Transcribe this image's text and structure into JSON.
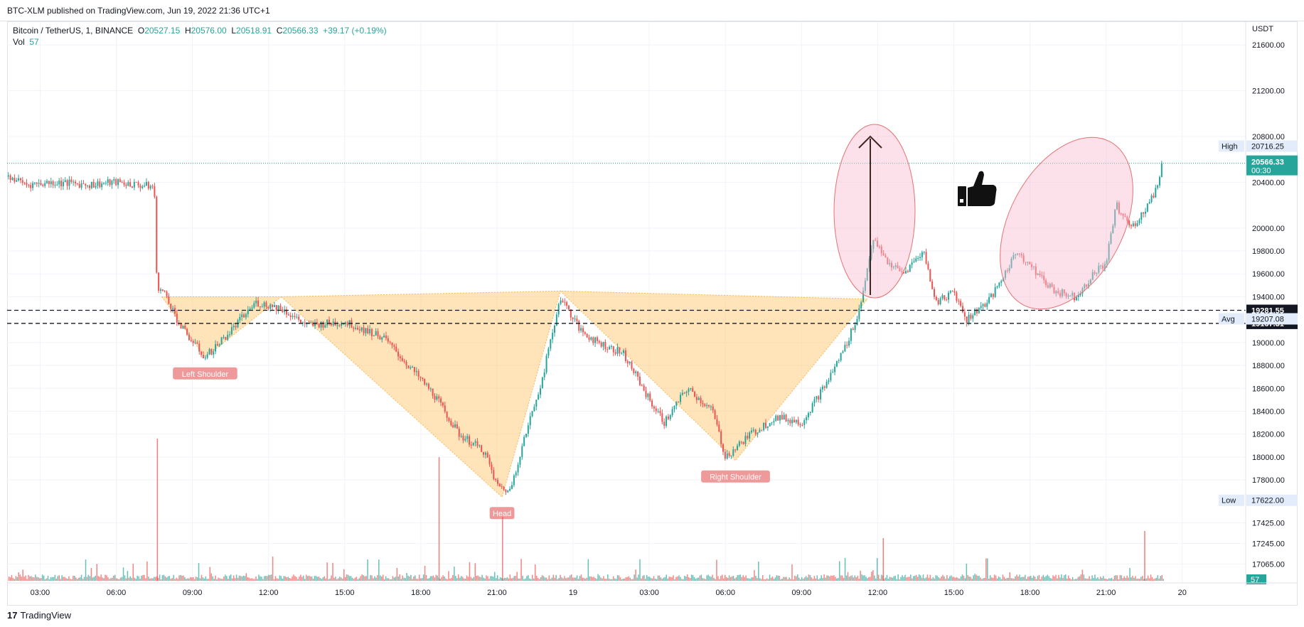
{
  "header": {
    "published": "BTC-XLM published on TradingView.com, Jun 19, 2022 21:36 UTC+1"
  },
  "legend": {
    "symbol": "Bitcoin / TetherUS, 1, BINANCE",
    "open_label": "O",
    "open": "20527.15",
    "high_label": "H",
    "high": "20576.00",
    "low_label": "L",
    "low": "20518.91",
    "close_label": "C",
    "close": "20566.33",
    "change": "+39.17 (+0.19%)",
    "vol_label": "Vol",
    "vol": "57"
  },
  "footer": {
    "brand": "TradingView",
    "logo_glyph": "17"
  },
  "colors": {
    "up": "#26a69a",
    "down": "#ef5350",
    "pattern_fill": "#ffcc80",
    "ellipse": "#f8bbd0",
    "label_bg": "#ef9a9a"
  },
  "chart_data": {
    "type": "candlestick",
    "title": "",
    "currency": "USDT",
    "y_range": [
      16900,
      21800
    ],
    "y_ticks": [
      21600,
      21200,
      20800,
      20400,
      20000,
      19800,
      19600,
      19400,
      19000,
      18800,
      18600,
      18400,
      18200,
      18000,
      17800,
      17425,
      17245,
      17065
    ],
    "y_tick_labels": [
      "21600.00",
      "21200.00",
      "20800.00",
      "20400.00",
      "20000.00",
      "19800.00",
      "19600.00",
      "19400.00",
      "19000.00",
      "18800.00",
      "18600.00",
      "18400.00",
      "18200.00",
      "18000.00",
      "17800.00",
      "17425.00",
      "17245.00",
      "17065.00"
    ],
    "x_ticks": [
      "03:00",
      "06:00",
      "09:00",
      "12:00",
      "15:00",
      "18:00",
      "21:00",
      "19",
      "03:00",
      "06:00",
      "09:00",
      "12:00",
      "15:00",
      "18:00",
      "21:00",
      "20"
    ],
    "x_tick_hours": [
      3,
      6,
      9,
      12,
      15,
      18,
      21,
      24,
      27,
      30,
      33,
      36,
      39,
      42,
      45,
      48
    ],
    "x_range_hours": [
      1.7,
      50.5
    ],
    "price_path": [
      {
        "t": 1.75,
        "p": 20450
      },
      {
        "t": 2.5,
        "p": 20380
      },
      {
        "t": 3.5,
        "p": 20400
      },
      {
        "t": 5.0,
        "p": 20380
      },
      {
        "t": 6.0,
        "p": 20400
      },
      {
        "t": 7.5,
        "p": 20360
      },
      {
        "t": 7.6,
        "p": 19500
      },
      {
        "t": 8.0,
        "p": 19400
      },
      {
        "t": 8.5,
        "p": 19150
      },
      {
        "t": 9.5,
        "p": 18870
      },
      {
        "t": 10.5,
        "p": 19100
      },
      {
        "t": 11.5,
        "p": 19350
      },
      {
        "t": 12.5,
        "p": 19300
      },
      {
        "t": 13.5,
        "p": 19150
      },
      {
        "t": 15.0,
        "p": 19180
      },
      {
        "t": 16.5,
        "p": 19050
      },
      {
        "t": 17.5,
        "p": 18800
      },
      {
        "t": 18.5,
        "p": 18550
      },
      {
        "t": 19.5,
        "p": 18200
      },
      {
        "t": 20.5,
        "p": 18050
      },
      {
        "t": 21.0,
        "p": 17750
      },
      {
        "t": 21.5,
        "p": 17700
      },
      {
        "t": 22.0,
        "p": 18100
      },
      {
        "t": 22.8,
        "p": 18700
      },
      {
        "t": 23.5,
        "p": 19400
      },
      {
        "t": 24.3,
        "p": 19100
      },
      {
        "t": 25.0,
        "p": 19000
      },
      {
        "t": 26.0,
        "p": 18900
      },
      {
        "t": 27.0,
        "p": 18500
      },
      {
        "t": 27.6,
        "p": 18300
      },
      {
        "t": 28.5,
        "p": 18600
      },
      {
        "t": 29.5,
        "p": 18400
      },
      {
        "t": 30.0,
        "p": 18000
      },
      {
        "t": 31.0,
        "p": 18200
      },
      {
        "t": 32.0,
        "p": 18350
      },
      {
        "t": 33.0,
        "p": 18300
      },
      {
        "t": 34.0,
        "p": 18650
      },
      {
        "t": 34.8,
        "p": 19000
      },
      {
        "t": 35.3,
        "p": 19300
      },
      {
        "t": 35.8,
        "p": 19900
      },
      {
        "t": 36.4,
        "p": 19700
      },
      {
        "t": 37.0,
        "p": 19600
      },
      {
        "t": 37.8,
        "p": 19800
      },
      {
        "t": 38.3,
        "p": 19350
      },
      {
        "t": 39.0,
        "p": 19450
      },
      {
        "t": 39.5,
        "p": 19200
      },
      {
        "t": 40.5,
        "p": 19400
      },
      {
        "t": 41.5,
        "p": 19800
      },
      {
        "t": 42.5,
        "p": 19550
      },
      {
        "t": 43.0,
        "p": 19450
      },
      {
        "t": 43.8,
        "p": 19400
      },
      {
        "t": 44.5,
        "p": 19600
      },
      {
        "t": 45.0,
        "p": 19700
      },
      {
        "t": 45.4,
        "p": 20200
      },
      {
        "t": 46.0,
        "p": 20000
      },
      {
        "t": 46.5,
        "p": 20150
      },
      {
        "t": 47.0,
        "p": 20350
      },
      {
        "t": 47.2,
        "p": 20566
      }
    ],
    "volume_spikes": [
      {
        "t": 7.6,
        "v": 1.0
      },
      {
        "t": 18.7,
        "v": 0.87
      },
      {
        "t": 21.2,
        "v": 0.45
      },
      {
        "t": 36.2,
        "v": 0.3
      },
      {
        "t": 46.5,
        "v": 0.35
      }
    ],
    "pattern_labels": [
      "Left Shoulder",
      "Head",
      "Right Shoulder"
    ],
    "pattern_points": [
      {
        "t": 7.8,
        "p": 19400
      },
      {
        "t": 9.5,
        "p": 18870
      },
      {
        "t": 12.5,
        "p": 19400
      },
      {
        "t": 21.2,
        "p": 17650
      },
      {
        "t": 23.5,
        "p": 19450
      },
      {
        "t": 30.4,
        "p": 17970
      },
      {
        "t": 35.6,
        "p": 19380
      }
    ],
    "reference_lines": [
      {
        "price": 19281.55,
        "label": "19281.55",
        "style": "dashed"
      },
      {
        "price": 19167.31,
        "label": "19167.31",
        "style": "dashed"
      }
    ],
    "price_markers": [
      {
        "label": "High",
        "value": "20716.25",
        "price": 20716.25
      },
      {
        "label": "Low",
        "value": "17622.00",
        "price": 17622.0
      },
      {
        "label": "Avg",
        "value": "19207.08",
        "price": 19207.08
      }
    ],
    "last_price": {
      "value": "20566.33",
      "countdown": "00:30",
      "price": 20566.33
    },
    "volume_last": "57"
  }
}
